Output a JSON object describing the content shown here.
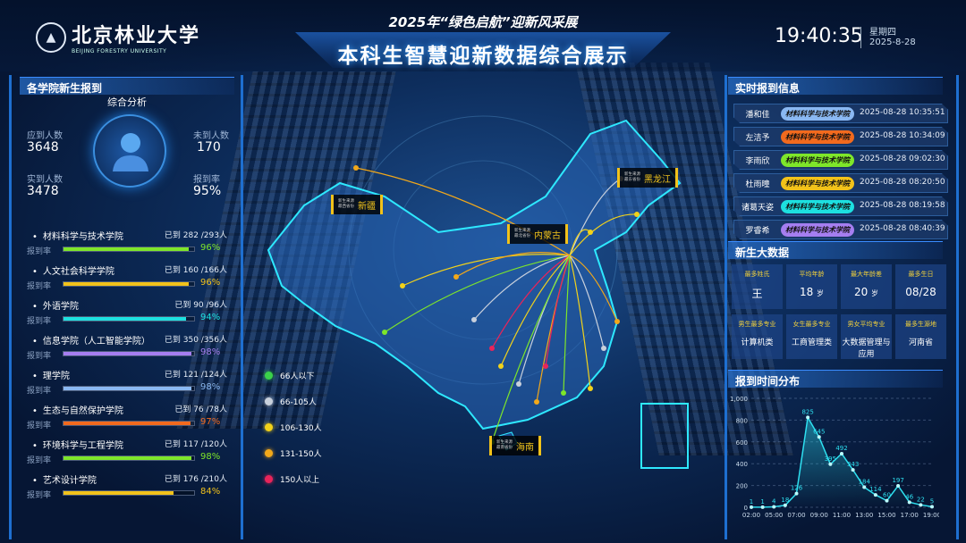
{
  "header": {
    "university_cn": "北京林业大学",
    "university_en": "BEIJING FORESTRY UNIVERSITY",
    "subtitle": "2025年“绿色启航”迎新风采展",
    "title": "本科生智慧迎新数据综合展示",
    "time": "19:40:35",
    "weekday": "星期四",
    "date": "2025-8-28"
  },
  "left": {
    "title": "各学院新生报到",
    "section": "综合分析",
    "stats": {
      "expected_label": "应到人数",
      "expected": "3648",
      "absent_label": "未到人数",
      "absent": "170",
      "arrived_label": "实到人数",
      "arrived": "3478",
      "rate_label": "报到率",
      "rate": "95%"
    },
    "rate_label": "报到率",
    "colleges": [
      {
        "name": "材料科学与技术学院",
        "count": "已到 282 /293人",
        "rate": "96%",
        "pct": 96,
        "color": "#7ee62a"
      },
      {
        "name": "人文社会科学学院",
        "count": "已到 160 /166人",
        "rate": "96%",
        "pct": 96,
        "color": "#f2c21a"
      },
      {
        "name": "外语学院",
        "count": "已到 90 /96人",
        "rate": "94%",
        "pct": 94,
        "color": "#1de0e0"
      },
      {
        "name": "信息学院（人工智能学院）",
        "count": "已到 350 /356人",
        "rate": "98%",
        "pct": 98,
        "color": "#a57ef0"
      },
      {
        "name": "理学院",
        "count": "已到 121 /124人",
        "rate": "98%",
        "pct": 98,
        "color": "#8ab8f2"
      },
      {
        "name": "生态与自然保护学院",
        "count": "已到 76 /78人",
        "rate": "97%",
        "pct": 97,
        "color": "#f26a1e"
      },
      {
        "name": "环境科学与工程学院",
        "count": "已到 117 /120人",
        "rate": "98%",
        "pct": 98,
        "color": "#7ee62a"
      },
      {
        "name": "艺术设计学院",
        "count": "已到 176 /210人",
        "rate": "84%",
        "pct": 84,
        "color": "#f2c21a"
      }
    ]
  },
  "map": {
    "legend": [
      {
        "label": "66人以下",
        "color": "#3bd14a"
      },
      {
        "label": "66-105人",
        "color": "#c8d0dc"
      },
      {
        "label": "106-130人",
        "color": "#f2d21a"
      },
      {
        "label": "131-150人",
        "color": "#f2a81a"
      },
      {
        "label": "150人以上",
        "color": "#e8245a"
      }
    ],
    "tags": [
      {
        "small": "新生来源 最西省份",
        "province": "新疆"
      },
      {
        "small": "新生来源 最北省份",
        "province": "内蒙古"
      },
      {
        "small": "新生来源 最东省份",
        "province": "黑龙江"
      },
      {
        "small": "新生来源 最南省份",
        "province": "海南"
      }
    ]
  },
  "realtime": {
    "title": "实时报到信息",
    "rows": [
      {
        "name": "潘和佳",
        "college": "材料科学与技术学院",
        "time": "2025-08-28 10:35:51",
        "color": "#8ab8f2"
      },
      {
        "name": "左洁予",
        "college": "材料科学与技术学院",
        "time": "2025-08-28 10:34:09",
        "color": "#f26a1e"
      },
      {
        "name": "李雨欣",
        "college": "材料科学与技术学院",
        "time": "2025-08-28 09:02:30",
        "color": "#7ee62a"
      },
      {
        "name": "杜雨曈",
        "college": "材料科学与技术学院",
        "time": "2025-08-28 08:20:50",
        "color": "#f2c21a"
      },
      {
        "name": "诸葛天姿",
        "college": "材料科学与技术学院",
        "time": "2025-08-28 08:19:58",
        "color": "#1de0e0"
      },
      {
        "name": "罗睿希",
        "college": "材料科学与技术学院",
        "time": "2025-08-28 08:40:39",
        "color": "#a57ef0"
      }
    ]
  },
  "bigdata": {
    "title": "新生大数据",
    "cells": [
      {
        "label": "最多姓氏",
        "value": "王",
        "unit": ""
      },
      {
        "label": "平均年龄",
        "value": "18",
        "unit": "岁"
      },
      {
        "label": "最大年龄差",
        "value": "20",
        "unit": "岁"
      },
      {
        "label": "最多生日",
        "value": "08/28",
        "unit": ""
      },
      {
        "label": "男生最多专业",
        "value": "计算机类",
        "unit": ""
      },
      {
        "label": "女生最多专业",
        "value": "工商管理类",
        "unit": ""
      },
      {
        "label": "男女平均专业",
        "value": "大数据管理与应用",
        "unit": ""
      },
      {
        "label": "最多生源地",
        "value": "河南省",
        "unit": ""
      }
    ]
  },
  "chart_data": {
    "type": "area",
    "title": "报到时间分布",
    "categories": [
      "02:00",
      "04:00",
      "05:00",
      "06:00",
      "07:00",
      "08:00",
      "09:00",
      "10:00",
      "11:00",
      "12:00",
      "13:00",
      "14:00",
      "15:00",
      "16:00",
      "17:00",
      "18:00",
      "19:00"
    ],
    "tick_labels": [
      "02:00",
      "05:00",
      "07:00",
      "09:00",
      "11:00",
      "13:00",
      "15:00",
      "17:00",
      "19:00"
    ],
    "values": [
      1,
      1,
      4,
      18,
      126,
      825,
      645,
      395,
      492,
      343,
      184,
      114,
      60,
      197,
      46,
      22,
      5
    ],
    "yticks": [
      "0",
      "200",
      "400",
      "600",
      "800",
      "1,000"
    ],
    "ylim": [
      0,
      1000
    ],
    "grid": true,
    "color": "#2ee0f0"
  }
}
